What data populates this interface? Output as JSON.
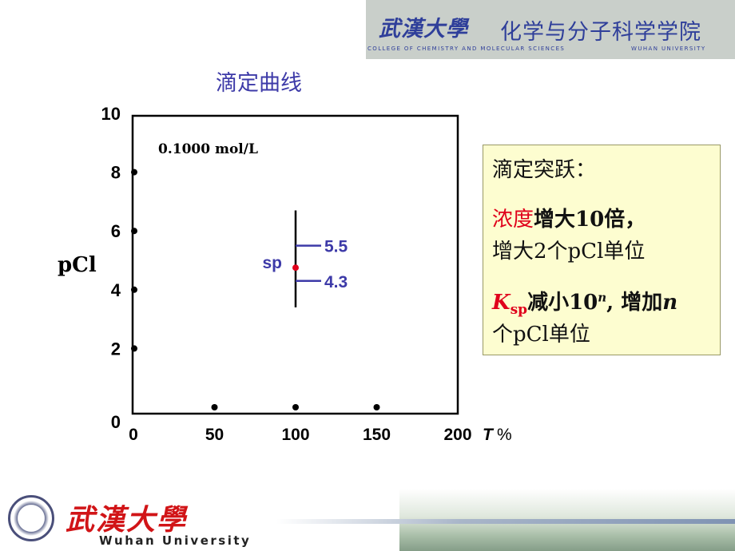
{
  "header": {
    "university_name": "武漢大學",
    "college_name": "化学与分子科学学院",
    "college_english": "COLLEGE OF CHEMISTRY AND MOLECULAR SCIENCES",
    "university_english": "WUHAN UNIVERSITY"
  },
  "chart_data": {
    "type": "scatter",
    "title": "滴定曲线",
    "ylabel": "pCl",
    "xlabel_italic": "T",
    "xlabel_unit": "%",
    "xlim": [
      0,
      200
    ],
    "ylim": [
      0,
      10
    ],
    "x_ticks": [
      "0",
      "50",
      "100",
      "150",
      "200"
    ],
    "y_ticks": [
      "0",
      "2",
      "4",
      "6",
      "8",
      "10"
    ],
    "concentration_label": "0.1000 mol/L",
    "grid": false,
    "points": [
      {
        "x": 0,
        "y": 8
      },
      {
        "x": 0,
        "y": 6
      },
      {
        "x": 0,
        "y": 4
      },
      {
        "x": 0,
        "y": 2
      },
      {
        "x": 50,
        "y": 0
      },
      {
        "x": 100,
        "y": 0
      },
      {
        "x": 150,
        "y": 0
      }
    ],
    "jump_line": {
      "x": 100,
      "y_from": 3.4,
      "y_to": 6.7
    },
    "sp_point": {
      "x": 100,
      "y": 4.75,
      "label": "sp",
      "color": "#e0001b"
    },
    "markers": [
      {
        "x": 100,
        "y": 5.5,
        "label": "5.5"
      },
      {
        "x": 100,
        "y": 4.3,
        "label": "4.3"
      }
    ]
  },
  "info_box": {
    "heading": "滴定突跃：",
    "line1_red": "浓度",
    "line1_rest": "增大10倍，",
    "line2": "增大2个pCl单位",
    "line3_k": "K",
    "line3_sub": "sp",
    "line3_a": "减小10",
    "line3_sup": "n",
    "line3_b": ", 增加",
    "line3_n": "n",
    "line4": "个pCl单位"
  },
  "footer": {
    "university_name": "武漢大學",
    "university_english": "Wuhan University"
  },
  "colors": {
    "accent_blue": "#3d3aa8",
    "accent_red": "#e0001b",
    "box_background": "#fdfdd0"
  }
}
